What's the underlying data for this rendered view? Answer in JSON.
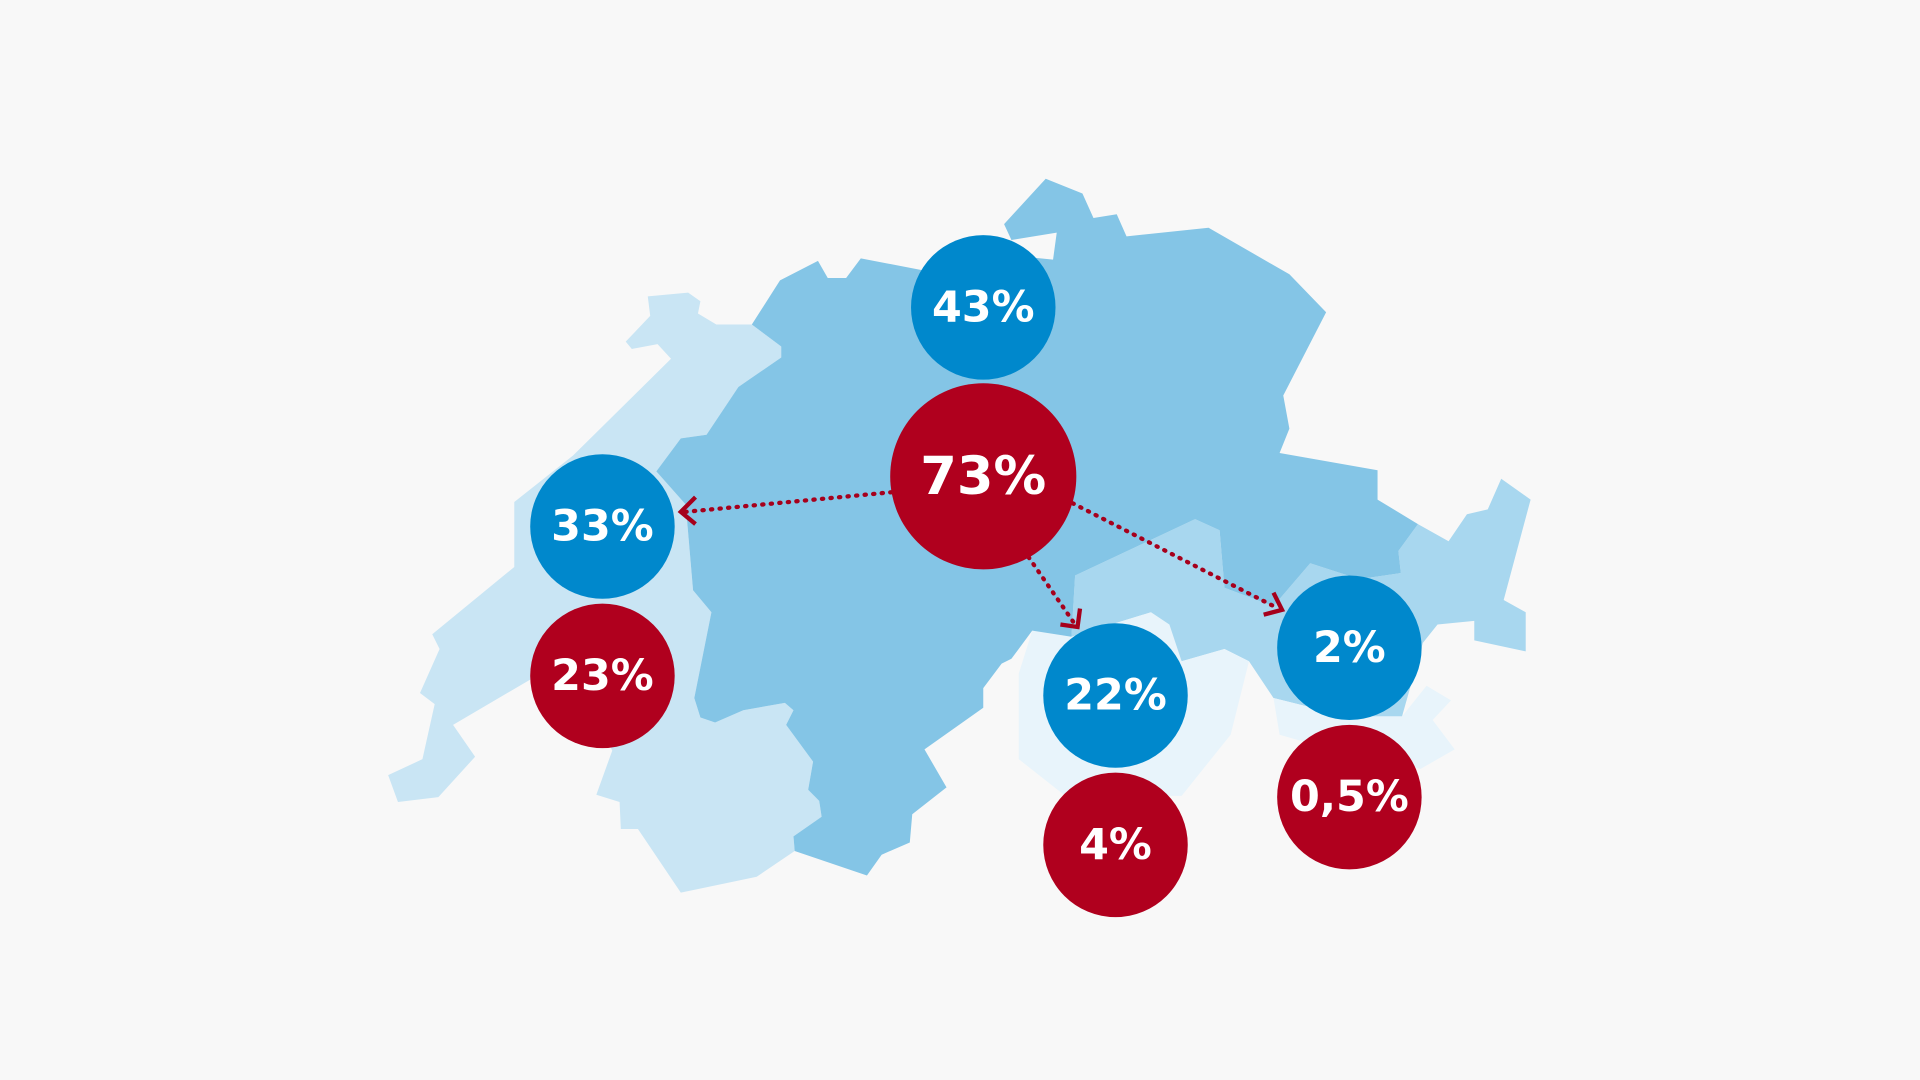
{
  "bubbles": [
    {
      "label": "43%"
    },
    {
      "label": "73%"
    },
    {
      "label": "33%"
    },
    {
      "label": "23%"
    },
    {
      "label": "22%"
    },
    {
      "label": "4%"
    },
    {
      "label": "2%"
    },
    {
      "label": "0,5%"
    }
  ]
}
